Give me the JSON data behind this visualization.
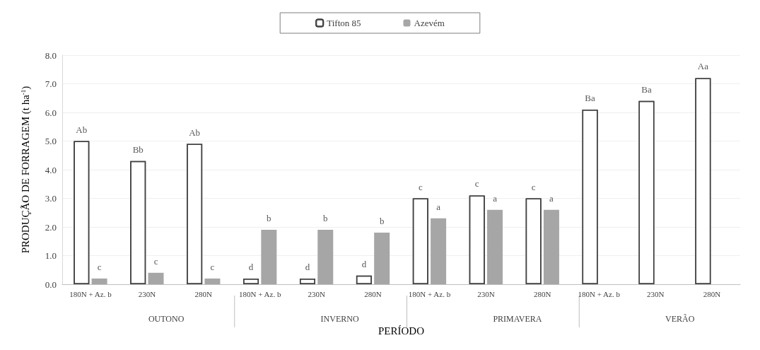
{
  "chart_data": {
    "type": "bar",
    "xlabel": "PERÍODO",
    "ylabel": "PRODUÇÃO DE FORRAGEM (t ha$^{-1}$)",
    "categories": [
      "180N + Az. b",
      "230N",
      "280N",
      "180N + Az. b",
      "230N",
      "280N",
      "180N + Az. b",
      "230N",
      "280N",
      "180N + Az. b",
      "230N",
      "280N"
    ],
    "series": [
      {
        "name": "Tifton 85",
        "color": "#404040",
        "values": [
          5.0,
          4.3,
          4.9,
          0.2,
          0.2,
          0.3,
          3.0,
          3.1,
          3.0,
          6.1,
          6.4,
          7.2
        ],
        "value_labels": [
          "Ab",
          "Bb",
          "Ab",
          "d",
          "d",
          "d",
          "c",
          "c",
          "c",
          "Ba",
          "Ba",
          "Aa"
        ]
      },
      {
        "name": "Azevém",
        "color": "#a6a6a6",
        "values": [
          0.2,
          0.4,
          0.2,
          1.9,
          1.9,
          1.8,
          2.3,
          2.6,
          2.6,
          null,
          null,
          null
        ],
        "value_labels": [
          "c",
          "c",
          "c",
          "b",
          "b",
          "b",
          "a",
          "a",
          "a",
          null,
          null,
          null
        ]
      }
    ],
    "annotations": [
      "OUTONO",
      "INVERNO",
      "PRIMAVERA",
      "VERÃO"
    ],
    "ylim": [
      0,
      8
    ],
    "yticks": [
      {
        "value": 0,
        "label": "0.0"
      },
      {
        "value": 1,
        "label": "1.0"
      },
      {
        "value": 2,
        "label": "2.0"
      },
      {
        "value": 3,
        "label": "3.0"
      },
      {
        "value": 4,
        "label": "4.0"
      },
      {
        "value": 5,
        "label": "5.0"
      },
      {
        "value": 6,
        "label": "6.0"
      },
      {
        "value": 7,
        "label": "7.0"
      },
      {
        "value": 8,
        "label": "8.0"
      }
    ],
    "grid": "y",
    "legend": "top"
  }
}
